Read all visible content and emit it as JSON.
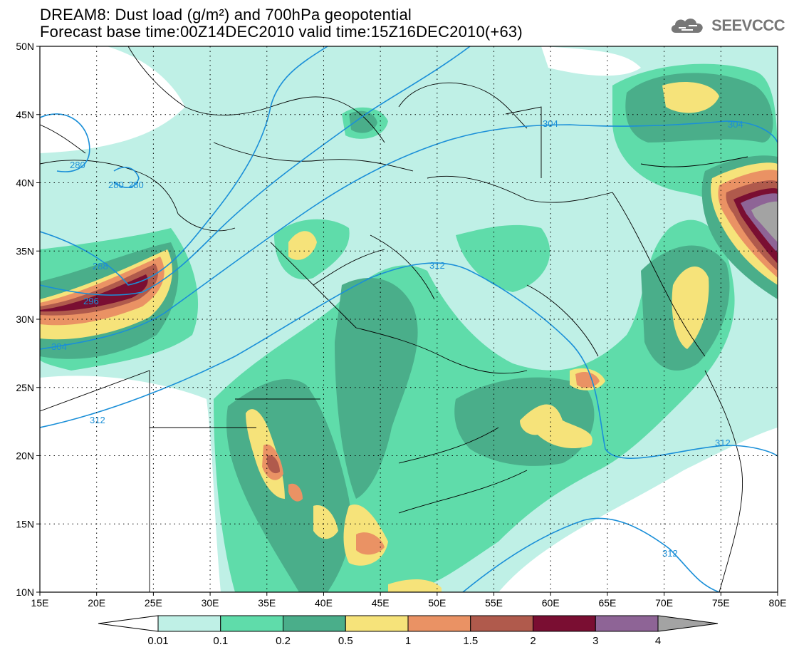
{
  "title": {
    "line1": "DREAM8: Dust load (g/m²) and 700hPa geopotential",
    "line2": "Forecast base time:00Z14DEC2010 valid time:15Z16DEC2010(+63)"
  },
  "logo": {
    "text": "SEEVCCC",
    "icon": "cloud-icon"
  },
  "map": {
    "lon_range": [
      15,
      80
    ],
    "lat_range": [
      10,
      50
    ],
    "x_ticks": [
      "15E",
      "20E",
      "25E",
      "30E",
      "35E",
      "40E",
      "45E",
      "50E",
      "55E",
      "60E",
      "65E",
      "70E",
      "75E",
      "80E"
    ],
    "y_ticks": [
      "10N",
      "15N",
      "20N",
      "25N",
      "30N",
      "35N",
      "40N",
      "45N",
      "50N"
    ],
    "grid": "dotted",
    "contour_color": "#1a8fd8",
    "contour_labels": [
      "280",
      "280",
      "280",
      "288",
      "296",
      "304",
      "304",
      "304",
      "312",
      "312",
      "312",
      "312"
    ]
  },
  "colorbar": {
    "levels": [
      "0.01",
      "0.1",
      "0.2",
      "0.5",
      "1",
      "1.5",
      "2",
      "3",
      "4"
    ],
    "colors": [
      "#ffffff",
      "#bff0e6",
      "#5fdcaa",
      "#4aae8a",
      "#f6e37a",
      "#ea9264",
      "#b05a4c",
      "#7a0e32",
      "#8e6496",
      "#a3a3a3"
    ]
  }
}
